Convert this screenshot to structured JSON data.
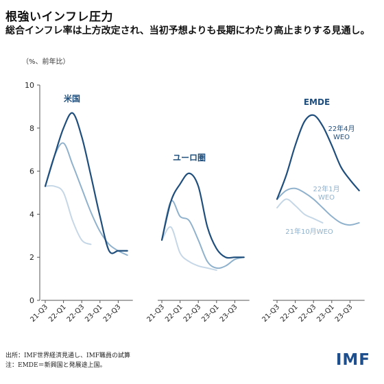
{
  "title": "根強いインフレ圧力",
  "subtitle": "総合インフレ率は上方改定され、当初予想よりも長期にわたり高止まりする見通し。",
  "unit_label": "（%、前年比）",
  "footer": {
    "source": "出所：IMF世界経済見通し、IMF職員の試算",
    "note": "注：EMDE＝新興国と発展途上国。"
  },
  "logo_text": "IMF",
  "colors": {
    "apr22": "#1f4e7c",
    "jan22": "#8fb1cc",
    "oct21": "#c5d7e6",
    "axis": "#555555",
    "panel_label": "#1f4e7c"
  },
  "chart_data": {
    "type": "line",
    "ylim": [
      0,
      10
    ],
    "yticks": [
      0,
      2,
      4,
      6,
      8,
      10
    ],
    "xtick_labels": [
      "21-Q3",
      "22-Q1",
      "22-Q3",
      "23-Q1",
      "23-Q3"
    ],
    "series_labels": {
      "apr22": "22年4月\nWEO",
      "jan22": "22年1月\nWEO",
      "oct21": "21年10月WEO"
    },
    "panels": [
      {
        "name": "米国",
        "x": [
          "21-Q3",
          "21-Q4",
          "22-Q1",
          "22-Q2",
          "22-Q3",
          "22-Q4",
          "23-Q1",
          "23-Q2",
          "23-Q3",
          "23-Q4"
        ],
        "series": [
          {
            "key": "apr22",
            "values": [
              5.3,
              6.7,
              8.0,
              8.7,
              7.6,
              5.8,
              3.9,
              2.3,
              2.3,
              2.3
            ]
          },
          {
            "key": "jan22",
            "values": [
              5.3,
              6.7,
              7.3,
              6.3,
              5.2,
              4.1,
              3.2,
              2.6,
              2.3,
              2.1
            ]
          },
          {
            "key": "oct21",
            "values": [
              5.3,
              5.3,
              5.0,
              3.7,
              2.8,
              2.6
            ]
          }
        ]
      },
      {
        "name": "ユーロ圏",
        "x": [
          "21-Q3",
          "21-Q4",
          "22-Q1",
          "22-Q2",
          "22-Q3",
          "22-Q4",
          "23-Q1",
          "23-Q2",
          "23-Q3",
          "23-Q4"
        ],
        "series": [
          {
            "key": "apr22",
            "values": [
              2.8,
              4.6,
              5.4,
              5.9,
              5.3,
              3.4,
              2.4,
              2.0,
              2.0,
              2.0
            ]
          },
          {
            "key": "jan22",
            "values": [
              2.8,
              4.6,
              3.9,
              3.7,
              2.8,
              1.8,
              1.5,
              1.6,
              1.9,
              2.0
            ]
          },
          {
            "key": "oct21",
            "values": [
              2.8,
              3.4,
              2.2,
              1.8,
              1.6,
              1.5,
              1.4
            ]
          }
        ]
      },
      {
        "name": "EMDE",
        "x": [
          "21-Q3",
          "21-Q4",
          "22-Q1",
          "22-Q2",
          "22-Q3",
          "22-Q4",
          "23-Q1",
          "23-Q2",
          "23-Q3",
          "23-Q4"
        ],
        "series": [
          {
            "key": "apr22",
            "values": [
              4.7,
              5.8,
              7.2,
              8.3,
              8.6,
              8.1,
              7.2,
              6.2,
              5.6,
              5.1
            ]
          },
          {
            "key": "jan22",
            "values": [
              4.7,
              5.1,
              5.2,
              5.0,
              4.7,
              4.3,
              3.9,
              3.6,
              3.5,
              3.6
            ]
          },
          {
            "key": "oct21",
            "values": [
              4.3,
              4.7,
              4.4,
              4.0,
              3.8,
              3.6
            ]
          }
        ]
      }
    ]
  }
}
